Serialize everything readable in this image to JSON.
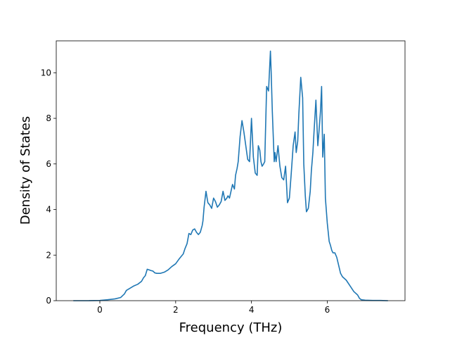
{
  "chart_data": {
    "type": "line",
    "title": "",
    "xlabel": "Frequency (THz)",
    "ylabel": "Density of States",
    "xlim": [
      -1.15,
      8.05
    ],
    "ylim": [
      0,
      11.4
    ],
    "xticks": [
      0,
      2,
      4,
      6
    ],
    "yticks": [
      0,
      2,
      4,
      6,
      8,
      10
    ],
    "grid": false,
    "legend": "none",
    "series": [
      {
        "color": "#1f77b4",
        "x": [
          -0.7,
          -0.3,
          0.0,
          0.2,
          0.4,
          0.55,
          0.65,
          0.7,
          0.75,
          0.8,
          0.85,
          0.9,
          1.0,
          1.1,
          1.15,
          1.2,
          1.25,
          1.3,
          1.35,
          1.4,
          1.45,
          1.5,
          1.6,
          1.7,
          1.8,
          1.9,
          2.0,
          2.1,
          2.2,
          2.25,
          2.3,
          2.35,
          2.4,
          2.45,
          2.5,
          2.55,
          2.6,
          2.65,
          2.7,
          2.72,
          2.75,
          2.8,
          2.85,
          2.9,
          2.95,
          3.0,
          3.05,
          3.1,
          3.15,
          3.2,
          3.25,
          3.3,
          3.35,
          3.38,
          3.42,
          3.5,
          3.55,
          3.58,
          3.62,
          3.65,
          3.7,
          3.75,
          3.8,
          3.85,
          3.9,
          3.95,
          4.0,
          4.05,
          4.1,
          4.15,
          4.18,
          4.22,
          4.25,
          4.28,
          4.32,
          4.35,
          4.4,
          4.45,
          4.5,
          4.52,
          4.55,
          4.6,
          4.62,
          4.65,
          4.7,
          4.75,
          4.8,
          4.85,
          4.9,
          4.95,
          5.0,
          5.05,
          5.1,
          5.15,
          5.18,
          5.22,
          5.25,
          5.3,
          5.35,
          5.38,
          5.42,
          5.45,
          5.5,
          5.55,
          5.58,
          5.62,
          5.65,
          5.7,
          5.75,
          5.78,
          5.82,
          5.85,
          5.88,
          5.92,
          5.95,
          6.0,
          6.05,
          6.08,
          6.12,
          6.15,
          6.2,
          6.25,
          6.3,
          6.35,
          6.4,
          6.5,
          6.6,
          6.7,
          6.8,
          6.85,
          6.9,
          7.0,
          7.2,
          7.4,
          7.6
        ],
        "y": [
          0.0,
          0.0,
          0.01,
          0.04,
          0.08,
          0.14,
          0.3,
          0.45,
          0.5,
          0.55,
          0.6,
          0.65,
          0.72,
          0.85,
          1.0,
          1.1,
          1.38,
          1.35,
          1.32,
          1.3,
          1.22,
          1.2,
          1.2,
          1.25,
          1.35,
          1.5,
          1.62,
          1.85,
          2.05,
          2.3,
          2.5,
          2.95,
          2.9,
          3.1,
          3.15,
          3.0,
          2.9,
          3.0,
          3.3,
          3.5,
          4.1,
          4.8,
          4.3,
          4.2,
          4.05,
          4.5,
          4.35,
          4.1,
          4.2,
          4.35,
          4.8,
          4.4,
          4.5,
          4.6,
          4.5,
          5.1,
          4.9,
          5.5,
          5.8,
          6.1,
          7.2,
          7.9,
          7.4,
          6.8,
          6.2,
          6.1,
          8.0,
          6.3,
          5.6,
          5.5,
          6.8,
          6.6,
          6.1,
          5.9,
          6.0,
          6.1,
          9.4,
          9.2,
          10.95,
          10.0,
          8.3,
          6.1,
          6.5,
          6.1,
          6.8,
          5.9,
          5.4,
          5.3,
          5.9,
          4.3,
          4.5,
          5.6,
          6.8,
          7.4,
          6.5,
          7.0,
          8.2,
          9.8,
          8.9,
          6.0,
          4.6,
          3.9,
          4.05,
          4.8,
          5.7,
          6.5,
          7.4,
          8.8,
          6.8,
          7.4,
          8.3,
          9.4,
          6.3,
          7.3,
          4.5,
          3.4,
          2.6,
          2.45,
          2.2,
          2.1,
          2.1,
          1.9,
          1.55,
          1.2,
          1.05,
          0.9,
          0.65,
          0.4,
          0.25,
          0.1,
          0.04,
          0.02,
          0.01,
          0.01,
          0.0
        ]
      }
    ]
  }
}
